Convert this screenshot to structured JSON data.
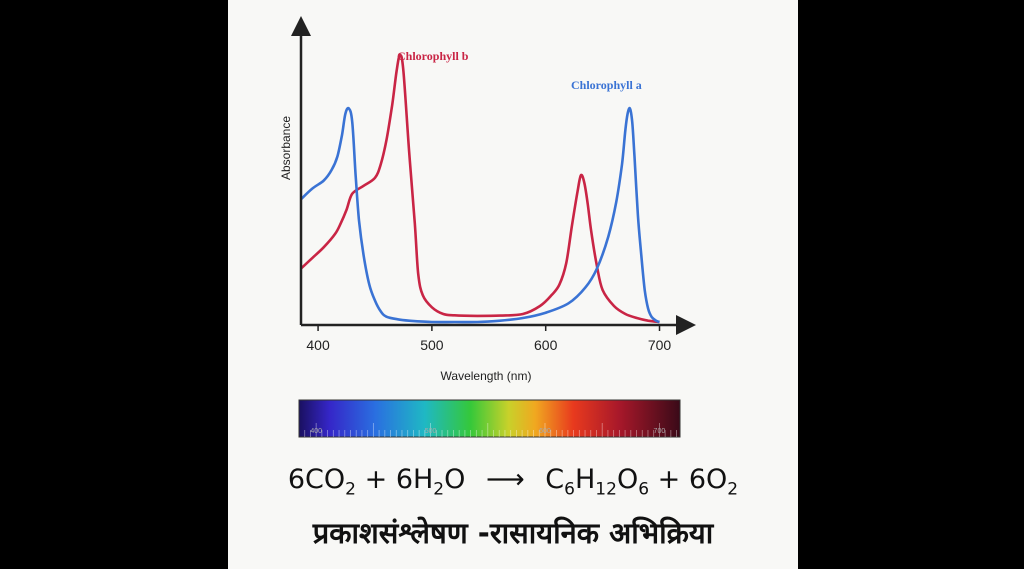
{
  "chart_data": {
    "type": "line",
    "title": "",
    "xlabel": "Wavelength (nm)",
    "ylabel": "Absorbance",
    "xlim": [
      385,
      718
    ],
    "ylim": [
      0,
      100
    ],
    "x_ticks": [
      400,
      500,
      600,
      700
    ],
    "colors": {
      "chl_a": "#3a73d4",
      "chl_b": "#c92545",
      "axis": "#222222"
    },
    "series": [
      {
        "name": "Chlorophyll b",
        "key": "chl_b",
        "x": [
          385,
          395,
          405,
          415,
          420,
          425,
          430,
          440,
          450,
          455,
          460,
          465,
          469,
          472,
          475,
          480,
          485,
          488,
          492,
          500,
          510,
          520,
          540,
          560,
          580,
          595,
          605,
          612,
          618,
          623,
          628,
          631,
          634,
          637,
          640,
          645,
          650,
          660,
          670,
          680,
          690,
          700
        ],
        "values": [
          20,
          24,
          28,
          33,
          37,
          42,
          48,
          51,
          54,
          59,
          68,
          81,
          94,
          100,
          94,
          64,
          37,
          18,
          10,
          5.5,
          3,
          2.5,
          2.3,
          2.4,
          3,
          6,
          10,
          14,
          22,
          36,
          49,
          55,
          52,
          44,
          34,
          21,
          12,
          6,
          3,
          1.5,
          0.5,
          0
        ]
      },
      {
        "name": "Chlorophyll a",
        "key": "chl_a",
        "x": [
          385,
          395,
          405,
          412,
          417,
          421,
          424,
          427,
          430,
          433,
          436,
          440,
          445,
          450,
          455,
          460,
          470,
          480,
          500,
          520,
          540,
          560,
          580,
          600,
          620,
          635,
          645,
          655,
          662,
          667,
          670,
          672,
          674,
          676,
          678,
          681,
          684,
          687,
          690,
          693,
          697,
          700
        ],
        "values": [
          46,
          50,
          53,
          57,
          62,
          70,
          78,
          80,
          75,
          55,
          38,
          25,
          14,
          8,
          4,
          2,
          1,
          0.5,
          0,
          0,
          0,
          0.5,
          1.5,
          3.5,
          7,
          13,
          20,
          32,
          45,
          59,
          72,
          78,
          80,
          75,
          62,
          40,
          25,
          12,
          5,
          2,
          0.5,
          0
        ]
      }
    ],
    "spectrum_bar": {
      "range": [
        385,
        718
      ],
      "tick_labels": [
        "400",
        "500",
        "600",
        "700"
      ]
    }
  },
  "equation": {
    "reactants": {
      "a": "6CO",
      "a_sub": "2",
      "plus1": "+",
      "b": "6H",
      "b_sub": "2",
      "b_tail": "O"
    },
    "arrow": "⟶",
    "products": {
      "c": "C",
      "c_sub1": "6",
      "c_h": "H",
      "c_sub2": "12",
      "c_o": "O",
      "c_sub3": "6",
      "plus2": "+",
      "d": "6O",
      "d_sub": "2"
    }
  },
  "caption": "प्रकाशसंश्लेषण -रासायनिक अभिक्रिया"
}
